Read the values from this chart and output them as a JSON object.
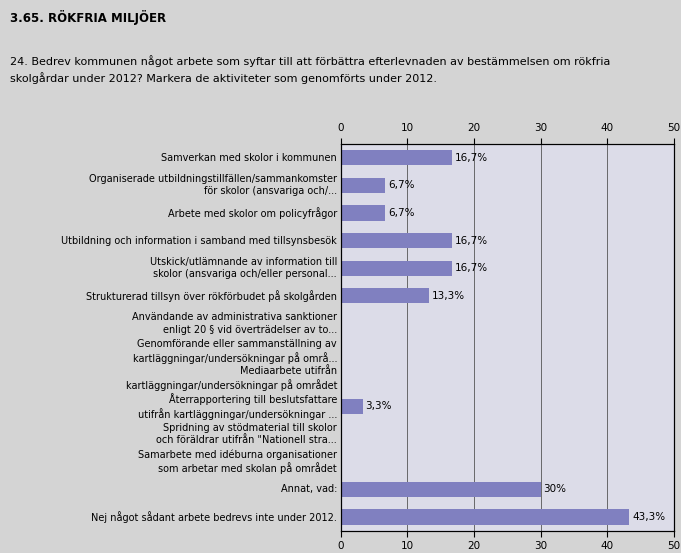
{
  "title": "3.65. RÖKFRIA MILJÖER",
  "subtitle": "24. Bedrev kommunen något arbete som syftar till att förbättra efterlevnaden av bestämmelsen om rökfria\nskolgårdar under 2012? Markera de aktiviteter som genomförts under 2012.",
  "categories": [
    "Samverkan med skolor i kommunen",
    "Organiserade utbildningstillfällen/sammankomster\nför skolor (ansvariga och/...",
    "Arbete med skolor om policyfrågor",
    "Utbildning och information i samband med tillsynsbesök",
    "Utskick/utlämnande av information till\nskolor (ansvariga och/eller personal...",
    "Strukturerad tillsyn över rökförbudet på skolgården",
    "Användande av administrativa sanktioner\nenligt 20 § vid överträdelser av to...",
    "Genomförande eller sammanställning av\nkartläggningar/undersökningar på områ...",
    "Mediaarbete utifrån\nkartläggningar/undersökningar på området",
    "Återrapportering till beslutsfattare\nutifrån kartläggningar/undersökningar ...",
    "Spridning av stödmaterial till skolor\noch föräldrar utifrån \"Nationell stra...",
    "Samarbete med idéburna organisationer\nsom arbetar med skolan på området",
    "Annat, vad:",
    "Nej något sådant arbete bedrevs inte under 2012."
  ],
  "values": [
    16.7,
    6.7,
    6.7,
    16.7,
    16.7,
    13.3,
    0,
    0,
    0,
    3.3,
    0,
    0,
    30,
    43.3
  ],
  "labels": [
    "16,7%",
    "6,7%",
    "6,7%",
    "16,7%",
    "16,7%",
    "13,3%",
    "",
    "",
    "",
    "3,3%",
    "",
    "",
    "30%",
    "43,3%"
  ],
  "bar_color": "#8080c0",
  "bg_color": "#d4d4d4",
  "plot_bg_color": "#dcdce8",
  "xlim": [
    0,
    50
  ],
  "xticks": [
    0,
    10,
    20,
    30,
    40,
    50
  ],
  "title_fontsize": 8.5,
  "subtitle_fontsize": 8,
  "label_fontsize": 7.5,
  "tick_fontsize": 7.5,
  "cat_fontsize": 7.0
}
